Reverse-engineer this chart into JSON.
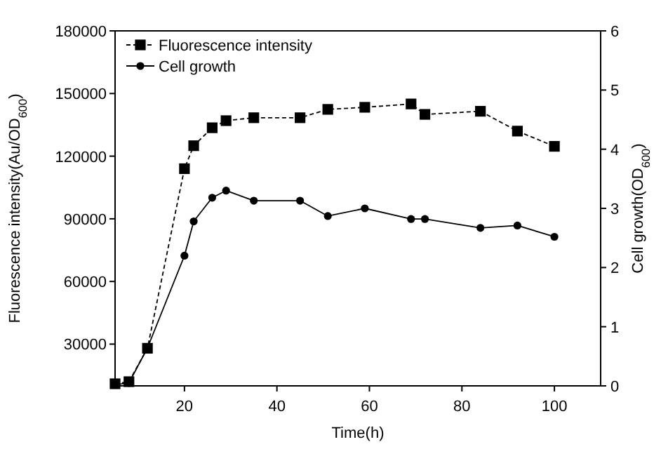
{
  "chart_data": {
    "type": "line",
    "xlabel": "Time(h)",
    "ylabel": "Fluorescence intensity(Au/OD$_{600}$)",
    "y2label": "Cell growth(OD$_{600}$)",
    "xlim": [
      5,
      110
    ],
    "xticks": [
      20,
      40,
      60,
      80,
      100
    ],
    "ylim": [
      10000,
      180000
    ],
    "yticks": [
      30000,
      60000,
      90000,
      120000,
      150000,
      180000
    ],
    "y2lim": [
      0,
      6
    ],
    "y2ticks": [
      0,
      1,
      2,
      3,
      4,
      5,
      6
    ],
    "legend": "top left",
    "grid": false,
    "series": [
      {
        "name": "Fluorescence intensity",
        "color": "#000000",
        "marker": "square",
        "line_style": "dashed",
        "x": [
          5,
          8,
          12,
          20,
          22,
          26,
          29,
          35,
          45,
          51,
          59,
          69,
          72,
          84,
          92,
          100
        ],
        "values": [
          11000,
          12000,
          28000,
          114000,
          125000,
          133600,
          137000,
          138400,
          138400,
          142400,
          143400,
          145000,
          140000,
          141500,
          132000,
          124700
        ]
      },
      {
        "name": "Cell growth",
        "color": "#000000",
        "marker": "circle",
        "line_style": "solid",
        "axis": "y2",
        "x": [
          5,
          8,
          12,
          20,
          22,
          26,
          29,
          35,
          45,
          51,
          59,
          69,
          72,
          84,
          92,
          100
        ],
        "values": [
          0.02,
          0.05,
          0.64,
          2.2,
          2.78,
          3.18,
          3.3,
          3.13,
          3.13,
          2.87,
          3.0,
          2.82,
          2.82,
          2.67,
          2.71,
          2.52
        ]
      }
    ]
  }
}
